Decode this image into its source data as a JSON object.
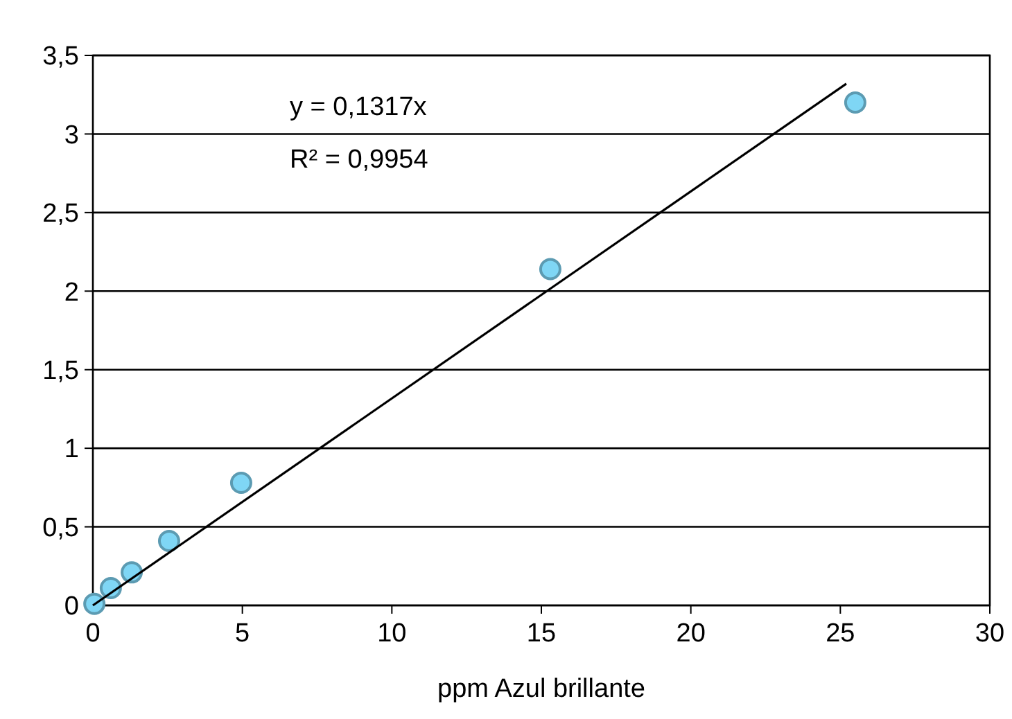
{
  "chart_data": {
    "type": "scatter",
    "xlabel": "ppm  Azul brillante",
    "series": [
      {
        "marker": "circle",
        "color": "#7fd6f5",
        "x": [
          0.05,
          0.6,
          1.3,
          2.55,
          4.96,
          15.3,
          25.5
        ],
        "values": [
          0.01,
          0.11,
          0.21,
          0.41,
          0.78,
          2.14,
          3.2
        ]
      },
      {
        "type": "line",
        "color": "#000000",
        "x": [
          0,
          25.2
        ],
        "values": [
          0,
          3.32
        ]
      }
    ],
    "xlim": [
      0,
      30
    ],
    "xticks": [
      0,
      5,
      10,
      15,
      20,
      25,
      30
    ],
    "ylim": [
      0,
      3.5
    ],
    "yticks": [
      0,
      {
        "value": 0.5,
        "label": "0,5"
      },
      1,
      {
        "value": 1.5,
        "label": "1,5"
      },
      2,
      {
        "value": 2.5,
        "label": "2,5"
      },
      3,
      {
        "value": 3.5,
        "label": "3,5"
      }
    ],
    "grid": "y",
    "annotations": [
      "y = 0,1317x",
      "R² = 0,9954"
    ]
  }
}
